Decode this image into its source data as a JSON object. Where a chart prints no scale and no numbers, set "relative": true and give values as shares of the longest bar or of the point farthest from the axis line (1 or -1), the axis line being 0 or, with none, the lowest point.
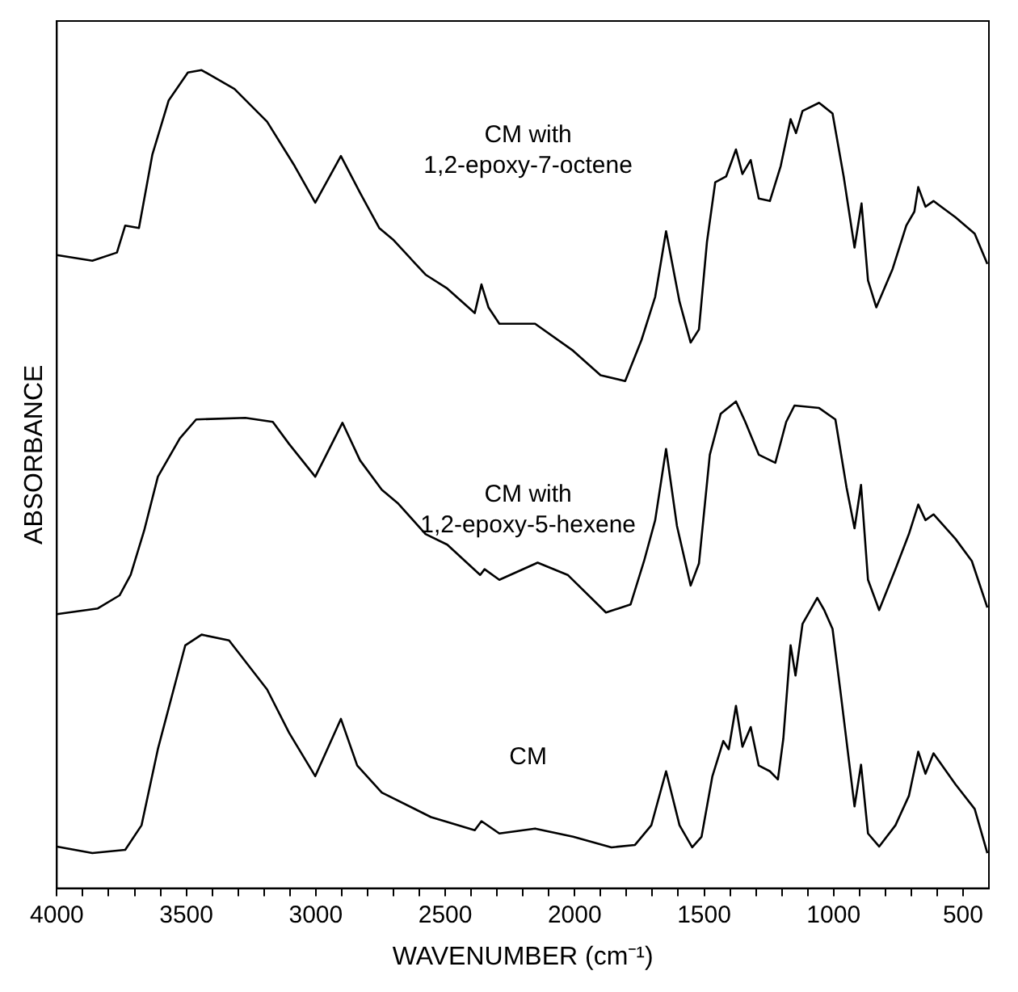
{
  "chart_data": {
    "type": "line",
    "relative": true,
    "xlabel": "WAVENUMBER (cm⁻¹)",
    "ylabel": "ABSORBANCE",
    "xlim": [
      4000,
      400
    ],
    "xticks": [
      4000,
      {
        "value": 3900,
        "label": null
      },
      {
        "value": 3800,
        "label": null
      },
      {
        "value": 3700,
        "label": null
      },
      {
        "value": 3600,
        "label": null
      },
      3500,
      {
        "value": 3400,
        "label": null
      },
      {
        "value": 3300,
        "label": null
      },
      {
        "value": 3200,
        "label": null
      },
      {
        "value": 3100,
        "label": null
      },
      3000,
      {
        "value": 2900,
        "label": null
      },
      {
        "value": 2800,
        "label": null
      },
      {
        "value": 2700,
        "label": null
      },
      {
        "value": 2600,
        "label": null
      },
      2500,
      {
        "value": 2400,
        "label": null
      },
      {
        "value": 2300,
        "label": null
      },
      {
        "value": 2200,
        "label": null
      },
      {
        "value": 2100,
        "label": null
      },
      2000,
      {
        "value": 1900,
        "label": null
      },
      {
        "value": 1800,
        "label": null
      },
      {
        "value": 1700,
        "label": null
      },
      {
        "value": 1600,
        "label": null
      },
      1500,
      {
        "value": 1400,
        "label": null
      },
      {
        "value": 1300,
        "label": null
      },
      {
        "value": 1200,
        "label": null
      },
      {
        "value": 1100,
        "label": null
      },
      1000,
      {
        "value": 900,
        "label": null
      },
      {
        "value": 800,
        "label": null
      },
      {
        "value": 700,
        "label": null
      },
      {
        "value": 600,
        "label": null
      },
      500
    ],
    "grid": false,
    "legend": false,
    "marker": "none",
    "line_style": "solid",
    "series": [
      {
        "name": "CM with\n1,2-epoxy-7-octene",
        "color": "#000000",
        "x": [
          4000,
          3863,
          3768,
          3736,
          3683,
          3631,
          3568,
          3494,
          3441,
          3314,
          3188,
          3082,
          3002,
          2903,
          2829,
          2755,
          2702,
          2576,
          2492,
          2386,
          2360,
          2333,
          2291,
          2153,
          2006,
          1900,
          1805,
          1742,
          1689,
          1647,
          1595,
          1552,
          1520,
          1489,
          1457,
          1415,
          1377,
          1352,
          1320,
          1289,
          1246,
          1204,
          1166,
          1145,
          1120,
          1056,
          1004,
          961,
          919,
          892,
          867,
          835,
          772,
          719,
          688,
          673,
          645,
          614,
          529,
          455,
          406
        ],
        "values": [
          0.774,
          0.767,
          0.777,
          0.81,
          0.807,
          0.897,
          0.963,
          0.997,
          1.0,
          0.977,
          0.937,
          0.883,
          0.838,
          0.895,
          0.85,
          0.807,
          0.793,
          0.75,
          0.733,
          0.703,
          0.738,
          0.71,
          0.69,
          0.69,
          0.657,
          0.627,
          0.62,
          0.67,
          0.723,
          0.803,
          0.717,
          0.667,
          0.683,
          0.79,
          0.863,
          0.87,
          0.903,
          0.873,
          0.89,
          0.843,
          0.84,
          0.883,
          0.94,
          0.923,
          0.95,
          0.96,
          0.947,
          0.87,
          0.783,
          0.837,
          0.743,
          0.71,
          0.757,
          0.81,
          0.827,
          0.857,
          0.833,
          0.84,
          0.82,
          0.8,
          0.763
        ]
      },
      {
        "name": "CM with\n1,2-epoxy-5-hexene",
        "color": "#000000",
        "x": [
          4000,
          3842,
          3758,
          3715,
          3663,
          3610,
          3525,
          3462,
          3272,
          3166,
          3103,
          3002,
          2897,
          2829,
          2745,
          2681,
          2576,
          2492,
          2365,
          2348,
          2291,
          2143,
          2027,
          1879,
          1784,
          1732,
          1689,
          1647,
          1605,
          1552,
          1520,
          1478,
          1436,
          1377,
          1341,
          1289,
          1225,
          1183,
          1151,
          1056,
          993,
          950,
          919,
          894,
          867,
          824,
          761,
          709,
          673,
          645,
          614,
          529,
          466,
          406
        ],
        "values": [
          0.335,
          0.342,
          0.358,
          0.383,
          0.437,
          0.503,
          0.55,
          0.573,
          0.575,
          0.57,
          0.543,
          0.503,
          0.569,
          0.523,
          0.487,
          0.47,
          0.433,
          0.42,
          0.383,
          0.39,
          0.377,
          0.398,
          0.383,
          0.337,
          0.347,
          0.4,
          0.45,
          0.537,
          0.443,
          0.37,
          0.397,
          0.53,
          0.58,
          0.595,
          0.57,
          0.53,
          0.52,
          0.57,
          0.59,
          0.587,
          0.573,
          0.49,
          0.44,
          0.493,
          0.377,
          0.34,
          0.39,
          0.433,
          0.469,
          0.45,
          0.457,
          0.427,
          0.4,
          0.343
        ]
      },
      {
        "name": "CM",
        "color": "#000000",
        "x": [
          4000,
          3863,
          3736,
          3673,
          3610,
          3504,
          3441,
          3335,
          3188,
          3103,
          3002,
          2903,
          2840,
          2745,
          2555,
          2386,
          2360,
          2291,
          2153,
          2006,
          1858,
          1767,
          1704,
          1647,
          1595,
          1546,
          1510,
          1468,
          1426,
          1405,
          1377,
          1352,
          1320,
          1289,
          1246,
          1215,
          1194,
          1166,
          1147,
          1120,
          1063,
          1036,
          1004,
          972,
          919,
          894,
          867,
          824,
          761,
          709,
          673,
          645,
          614,
          529,
          455,
          406
        ],
        "values": [
          0.051,
          0.043,
          0.047,
          0.077,
          0.17,
          0.297,
          0.31,
          0.303,
          0.243,
          0.19,
          0.137,
          0.207,
          0.15,
          0.117,
          0.087,
          0.071,
          0.082,
          0.067,
          0.073,
          0.063,
          0.05,
          0.053,
          0.077,
          0.143,
          0.077,
          0.05,
          0.063,
          0.137,
          0.18,
          0.17,
          0.223,
          0.173,
          0.197,
          0.15,
          0.143,
          0.133,
          0.183,
          0.297,
          0.26,
          0.323,
          0.355,
          0.34,
          0.317,
          0.237,
          0.1,
          0.151,
          0.067,
          0.051,
          0.077,
          0.113,
          0.167,
          0.14,
          0.165,
          0.127,
          0.097,
          0.043
        ]
      }
    ]
  }
}
